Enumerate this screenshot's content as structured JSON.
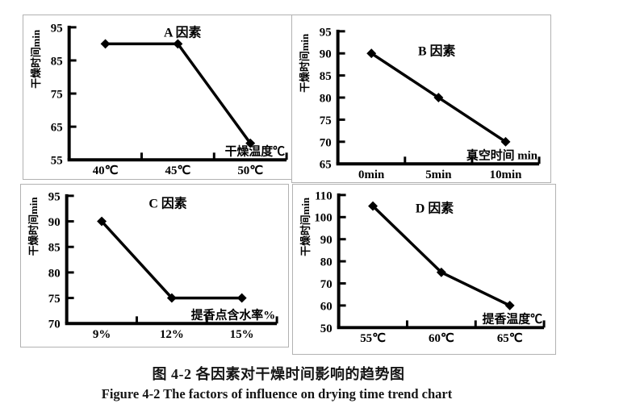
{
  "style": {
    "ink": "#000000",
    "panel_border": "#b2b2b2",
    "background": "#ffffff"
  },
  "caption": {
    "zh": "图 4-2 各因素对干燥时间影响的趋势图",
    "en": "Figure 4-2 The factors of influence on drying time trend chart"
  },
  "chart_data": [
    {
      "type": "line",
      "title": "A 因素",
      "ylabel": "干燥时间min",
      "xlabel": "干燥温度℃",
      "categories": [
        "40℃",
        "45℃",
        "50℃"
      ],
      "values": [
        90,
        90,
        60
      ],
      "ylim": [
        55,
        95
      ],
      "yticks": [
        95,
        85,
        75,
        65,
        55
      ],
      "grid": false,
      "legend": "none",
      "marker": "diamond",
      "line_color": "#000000"
    },
    {
      "type": "line",
      "title": "B 因素",
      "ylabel": "干燥时间min",
      "xlabel": "真空时间 min",
      "categories": [
        "0min",
        "5min",
        "10min"
      ],
      "values": [
        90,
        80,
        70
      ],
      "ylim": [
        65,
        95
      ],
      "yticks": [
        95,
        90,
        85,
        80,
        75,
        70,
        65
      ],
      "grid": false,
      "legend": "none",
      "marker": "diamond",
      "line_color": "#000000"
    },
    {
      "type": "line",
      "title": "C 因素",
      "ylabel": "干燥时间min",
      "xlabel": "提香点含水率%",
      "categories": [
        "9%",
        "12%",
        "15%"
      ],
      "values": [
        90,
        75,
        75
      ],
      "ylim": [
        70,
        95
      ],
      "yticks": [
        95,
        90,
        85,
        80,
        75,
        70
      ],
      "grid": false,
      "legend": "none",
      "marker": "diamond",
      "line_color": "#000000"
    },
    {
      "type": "line",
      "title": "D 因素",
      "ylabel": "干燥时间min",
      "xlabel": "提香温度℃",
      "categories": [
        "55℃",
        "60℃",
        "65℃"
      ],
      "values": [
        105,
        75,
        60
      ],
      "ylim": [
        50,
        110
      ],
      "yticks": [
        110,
        100,
        90,
        80,
        70,
        60,
        50
      ],
      "grid": false,
      "legend": "none",
      "marker": "diamond",
      "line_color": "#000000"
    }
  ]
}
